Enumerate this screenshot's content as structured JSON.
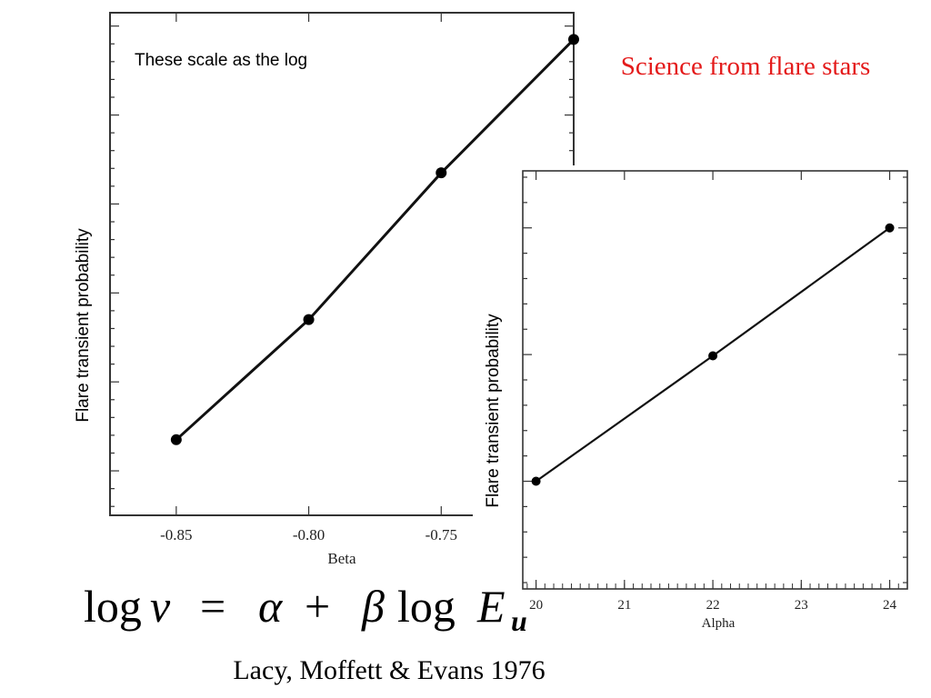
{
  "slide": {
    "title": "Science from flare stars",
    "title_color": "#e41b1b",
    "annotation": "These scale as the log",
    "equation": {
      "log": "log",
      "nu": "ν",
      "eq": "=",
      "alpha": "α",
      "plus": "+",
      "beta": "β",
      "log2": "log",
      "E": "E",
      "sub": "u"
    },
    "citation": "Lacy, Moffett & Evans 1976"
  },
  "chart_data": [
    {
      "type": "line",
      "xlabel": "Beta",
      "ylabel": "Flare transient probability",
      "xlim": [
        -0.875,
        -0.7
      ],
      "ylim": [
        0.5,
        6.15
      ],
      "x_ticks": [
        -0.85,
        -0.8,
        -0.75
      ],
      "x_tick_labels": [
        "-0.85",
        "-0.80",
        "-0.75"
      ],
      "y_ticks": [
        1,
        2,
        3,
        4,
        5,
        6
      ],
      "grid": false,
      "series": [
        {
          "x": [
            -0.85,
            -0.8,
            -0.75,
            -0.7
          ],
          "y": [
            1.35,
            2.7,
            4.35,
            5.85
          ]
        }
      ]
    },
    {
      "type": "line",
      "xlabel": "Alpha",
      "ylabel": "Flare transient probability",
      "xlim": [
        19.85,
        24.2
      ],
      "ylim": [
        0.15,
        3.45
      ],
      "x_ticks": [
        20,
        21,
        22,
        23,
        24
      ],
      "x_tick_labels": [
        "20",
        "21",
        "22",
        "23",
        "24"
      ],
      "y_ticks": [
        1,
        2,
        3
      ],
      "grid": false,
      "series": [
        {
          "x": [
            20,
            22,
            24
          ],
          "y": [
            1.0,
            1.99,
            3.0
          ]
        }
      ]
    }
  ]
}
